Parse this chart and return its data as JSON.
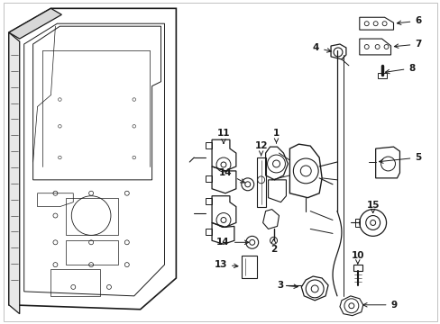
{
  "bg": "#ffffff",
  "lc": "#1a1a1a",
  "fig_w": 4.89,
  "fig_h": 3.6,
  "dpi": 100,
  "border": true
}
